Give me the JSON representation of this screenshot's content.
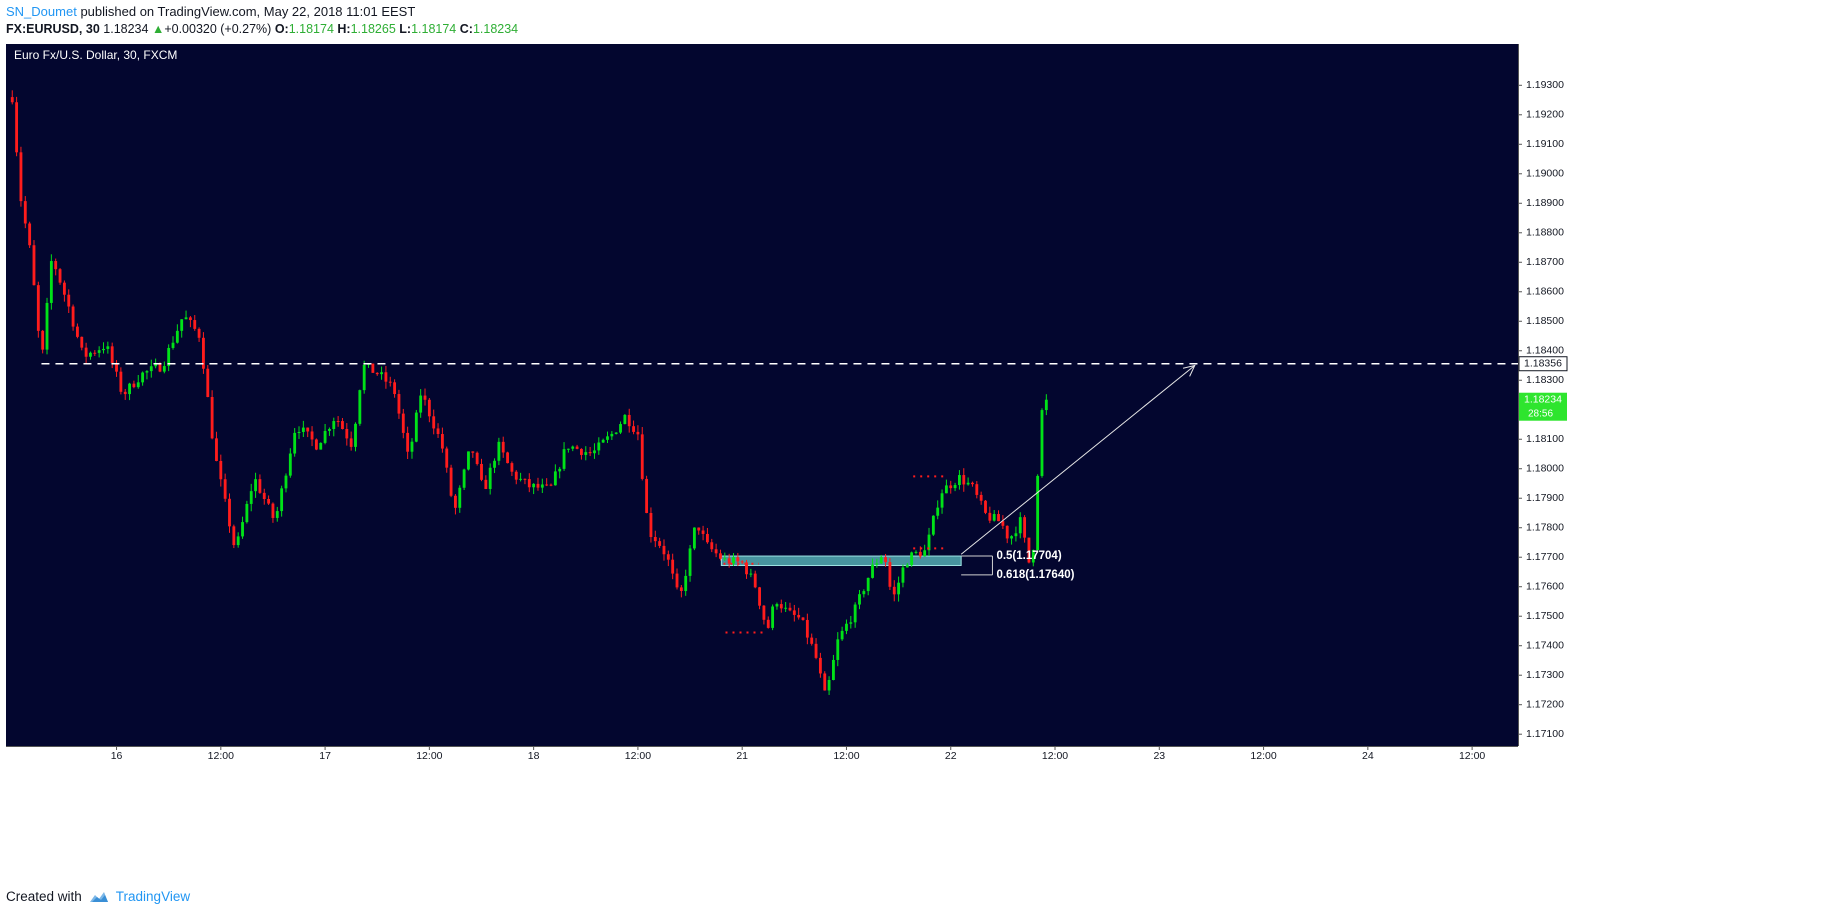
{
  "header": {
    "author": "SN_Doumet",
    "published_text": "published on TradingView.com, May 22, 2018 11:01 EEST",
    "symbol": "FX:EURUSD, 30",
    "last": "1.18234",
    "change": "+0.00320 (+0.27%)",
    "o_label": "O:",
    "o_value": "1.18174",
    "h_label": "H:",
    "h_value": "1.18265",
    "l_label": "L:",
    "l_value": "1.18174",
    "c_label": "C:",
    "c_value": "1.18234",
    "up_arrow": "▲"
  },
  "footer": {
    "created_with": "Created with",
    "brand": "TradingView"
  },
  "colors": {
    "background": "#03062f",
    "up": "#00e218",
    "down": "#ff1c1c",
    "axis_text": "#131722",
    "level_line": "#ffffff",
    "zone": "#5fc3c6",
    "price_badge": "#2ee52e"
  },
  "chart_data": {
    "type": "candlestick",
    "title": "Euro Fx/U.S. Dollar, 30, FXCM",
    "y_ticks": [
      "1.19300",
      "1.19200",
      "1.19100",
      "1.19000",
      "1.18900",
      "1.18800",
      "1.18700",
      "1.18600",
      "1.18500",
      "1.18400",
      "1.18300",
      "1.18200",
      "1.18100",
      "1.18000",
      "1.17900",
      "1.17800",
      "1.17700",
      "1.17600",
      "1.17500",
      "1.17400",
      "1.17300",
      "1.17200",
      "1.17100"
    ],
    "x_ticks": [
      {
        "label": "16",
        "t": 0.5
      },
      {
        "label": "12:00",
        "t": 1.0
      },
      {
        "label": "17",
        "t": 1.5
      },
      {
        "label": "12:00",
        "t": 2.0
      },
      {
        "label": "18",
        "t": 2.5
      },
      {
        "label": "12:00",
        "t": 3.0
      },
      {
        "label": "21",
        "t": 3.5
      },
      {
        "label": "12:00",
        "t": 4.0
      },
      {
        "label": "22",
        "t": 4.5
      },
      {
        "label": "12:00",
        "t": 5.0
      },
      {
        "label": "23",
        "t": 5.5
      },
      {
        "label": "12:00",
        "t": 6.0
      },
      {
        "label": "24",
        "t": 6.5
      },
      {
        "label": "12:00",
        "t": 7.0
      }
    ],
    "ylim": [
      1.1706,
      1.1944
    ],
    "resistance": {
      "price": 1.18356,
      "label": "1.18356"
    },
    "last_price": {
      "price": 1.18234,
      "label": "1.18234",
      "countdown": "28:56"
    },
    "fib_levels": [
      {
        "label": "0.5(1.17704)",
        "price": 1.17704
      },
      {
        "label": "0.618(1.17640)",
        "price": 1.1764
      }
    ],
    "demand_zone": {
      "high": 1.17704,
      "low": 1.17672
    },
    "projection": {
      "from_t": 4.55,
      "from_price": 1.1771,
      "to_t": 5.67,
      "to_price": 1.1835
    },
    "dotted_levels": [
      {
        "price": 1.17974,
        "t_start": 4.32,
        "t_end": 4.47
      },
      {
        "price": 1.1773,
        "t_start": 4.32,
        "t_end": 4.47
      },
      {
        "price": 1.17678,
        "t_start": 3.41,
        "t_end": 3.58
      },
      {
        "price": 1.17445,
        "t_start": 3.42,
        "t_end": 3.62
      }
    ],
    "time_range": [
      -0.03,
      7.22
    ],
    "anchors": [
      [
        0.0,
        1.1926
      ],
      [
        0.04,
        1.1892
      ],
      [
        0.09,
        1.1872
      ],
      [
        0.14,
        1.1835
      ],
      [
        0.19,
        1.1872
      ],
      [
        0.27,
        1.1855
      ],
      [
        0.34,
        1.1838
      ],
      [
        0.45,
        1.1842
      ],
      [
        0.53,
        1.1825
      ],
      [
        0.62,
        1.1832
      ],
      [
        0.72,
        1.1835
      ],
      [
        0.82,
        1.1852
      ],
      [
        0.9,
        1.1845
      ],
      [
        0.97,
        1.1805
      ],
      [
        1.07,
        1.1772
      ],
      [
        1.16,
        1.1797
      ],
      [
        1.26,
        1.1782
      ],
      [
        1.36,
        1.1815
      ],
      [
        1.46,
        1.1808
      ],
      [
        1.55,
        1.1818
      ],
      [
        1.63,
        1.1808
      ],
      [
        1.68,
        1.1835
      ],
      [
        1.76,
        1.1832
      ],
      [
        1.83,
        1.1827
      ],
      [
        1.9,
        1.1803
      ],
      [
        1.96,
        1.1826
      ],
      [
        2.06,
        1.1808
      ],
      [
        2.12,
        1.1785
      ],
      [
        2.2,
        1.1808
      ],
      [
        2.26,
        1.1792
      ],
      [
        2.33,
        1.1808
      ],
      [
        2.4,
        1.1798
      ],
      [
        2.48,
        1.1794
      ],
      [
        2.58,
        1.1793
      ],
      [
        2.66,
        1.1808
      ],
      [
        2.78,
        1.1805
      ],
      [
        2.88,
        1.1812
      ],
      [
        2.94,
        1.1818
      ],
      [
        3.0,
        1.1812
      ],
      [
        3.05,
        1.1779
      ],
      [
        3.1,
        1.1775
      ],
      [
        3.14,
        1.177
      ],
      [
        3.2,
        1.1755
      ],
      [
        3.28,
        1.1782
      ],
      [
        3.33,
        1.1774
      ],
      [
        3.41,
        1.1769
      ],
      [
        3.5,
        1.1768
      ],
      [
        3.56,
        1.1761
      ],
      [
        3.62,
        1.1745
      ],
      [
        3.66,
        1.1756
      ],
      [
        3.72,
        1.1751
      ],
      [
        3.78,
        1.1749
      ],
      [
        3.85,
        1.1737
      ],
      [
        3.9,
        1.1722
      ],
      [
        3.96,
        1.1742
      ],
      [
        4.04,
        1.1752
      ],
      [
        4.12,
        1.1766
      ],
      [
        4.18,
        1.1772
      ],
      [
        4.22,
        1.1755
      ],
      [
        4.28,
        1.1768
      ],
      [
        4.32,
        1.1771
      ],
      [
        4.38,
        1.1772
      ],
      [
        4.45,
        1.1792
      ],
      [
        4.54,
        1.1797
      ],
      [
        4.6,
        1.1794
      ],
      [
        4.67,
        1.1784
      ],
      [
        4.74,
        1.1782
      ],
      [
        4.78,
        1.1776
      ],
      [
        4.84,
        1.1783
      ],
      [
        4.87,
        1.1767
      ],
      [
        4.9,
        1.1775
      ],
      [
        4.93,
        1.1818
      ],
      [
        4.96,
        1.18234
      ]
    ]
  }
}
